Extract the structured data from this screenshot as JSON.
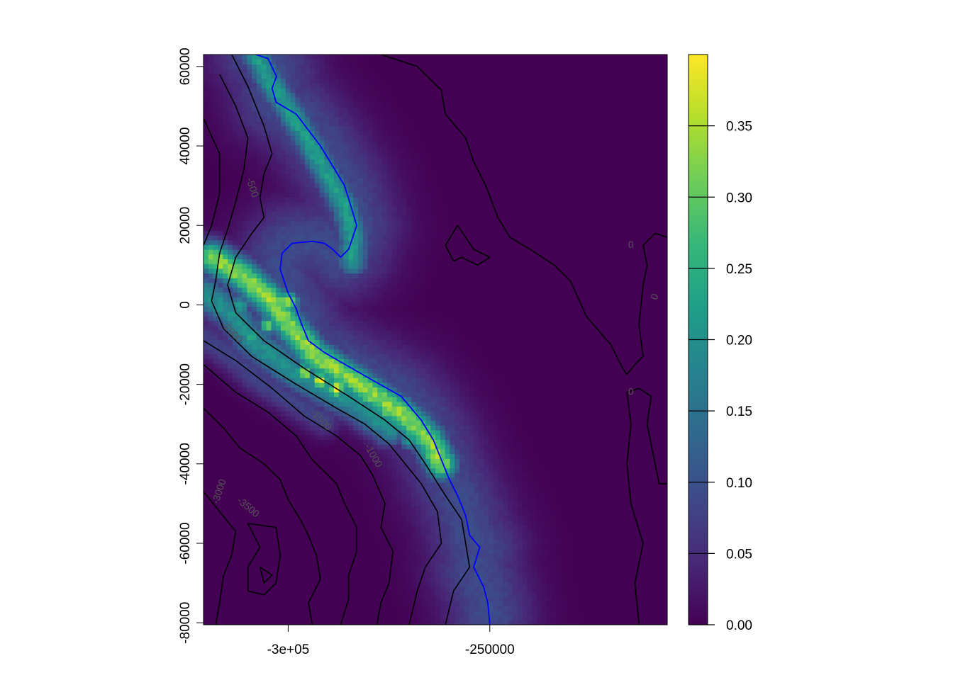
{
  "chart_data": {
    "type": "heatmap",
    "title": "",
    "xlabel": "",
    "ylabel": "",
    "xlim": [
      -321000,
      -206000
    ],
    "ylim": [
      -80500,
      63000
    ],
    "x_ticks": [
      {
        "value": -300000,
        "label": "-3e+05"
      },
      {
        "value": -250000,
        "label": "-250000"
      }
    ],
    "y_ticks": [
      {
        "value": 60000,
        "label": "60000"
      },
      {
        "value": 40000,
        "label": "40000"
      },
      {
        "value": 20000,
        "label": "20000"
      },
      {
        "value": 0,
        "label": "0"
      },
      {
        "value": -20000,
        "label": "-20000"
      },
      {
        "value": -40000,
        "label": "-40000"
      },
      {
        "value": -60000,
        "label": "-60000"
      },
      {
        "value": -80000,
        "label": "-80000"
      }
    ],
    "colorbar": {
      "range": [
        0,
        0.4
      ],
      "palette": [
        "#440154",
        "#482878",
        "#3E4A89",
        "#31688E",
        "#26828E",
        "#1F9E89",
        "#35B779",
        "#6DCD59",
        "#B4DE2C",
        "#FDE725"
      ],
      "ticks": [
        {
          "value": 0.0,
          "label": "0.00"
        },
        {
          "value": 0.05,
          "label": "0.05"
        },
        {
          "value": 0.1,
          "label": "0.10"
        },
        {
          "value": 0.15,
          "label": "0.15"
        },
        {
          "value": 0.2,
          "label": "0.20"
        },
        {
          "value": 0.25,
          "label": "0.25"
        },
        {
          "value": 0.3,
          "label": "0.30"
        },
        {
          "value": 0.35,
          "label": "0.35"
        }
      ]
    },
    "highlight_line": {
      "color": "#0000FF",
      "points": [
        [
          -308000,
          63000
        ],
        [
          -305000,
          62000
        ],
        [
          -302900,
          57500
        ],
        [
          -304000,
          54500
        ],
        [
          -303000,
          51000
        ],
        [
          -298000,
          48000
        ],
        [
          -292000,
          40000
        ],
        [
          -286000,
          30000
        ],
        [
          -283000,
          20000
        ],
        [
          -285000,
          14000
        ],
        [
          -287000,
          12000
        ],
        [
          -289000,
          14000
        ],
        [
          -291000,
          15500
        ],
        [
          -294000,
          16000
        ],
        [
          -299000,
          15500
        ],
        [
          -301500,
          13000
        ],
        [
          -302000,
          9000
        ],
        [
          -300000,
          3000
        ],
        [
          -298000,
          -1000
        ],
        [
          -297000,
          -4000
        ],
        [
          -295000,
          -9000
        ],
        [
          -291000,
          -12000
        ],
        [
          -285000,
          -15500
        ],
        [
          -279000,
          -19000
        ],
        [
          -272000,
          -23000
        ],
        [
          -267000,
          -29000
        ],
        [
          -264000,
          -34000
        ],
        [
          -262000,
          -39000
        ],
        [
          -260000,
          -44000
        ],
        [
          -258000,
          -48000
        ],
        [
          -256000,
          -53000
        ],
        [
          -255000,
          -58000
        ],
        [
          -252500,
          -61000
        ],
        [
          -254000,
          -66000
        ],
        [
          -251500,
          -71000
        ],
        [
          -250500,
          -75000
        ],
        [
          -250000,
          -80500
        ]
      ]
    },
    "ridges": [
      {
        "points": [
          [
            -308000,
            63000
          ],
          [
            -305000,
            57000
          ],
          [
            -301000,
            51000
          ],
          [
            -296000,
            43000
          ],
          [
            -291000,
            34000
          ],
          [
            -286000,
            25000
          ],
          [
            -284000,
            18000
          ],
          [
            -284000,
            11000
          ]
        ],
        "width": 2300,
        "peak": 0.22
      },
      {
        "points": [
          [
            -319000,
            12000
          ],
          [
            -312000,
            8000
          ],
          [
            -304000,
            1000
          ],
          [
            -299000,
            -6000
          ],
          [
            -293000,
            -13000
          ],
          [
            -285000,
            -18000
          ],
          [
            -278000,
            -23000
          ],
          [
            -271000,
            -28000
          ],
          [
            -265000,
            -34000
          ],
          [
            -262000,
            -40000
          ]
        ],
        "width": 2600,
        "peak": 0.33
      },
      {
        "points": [
          [
            -321000,
            3000
          ],
          [
            -314000,
            -2000
          ],
          [
            -309000,
            -9000
          ],
          [
            -300000,
            -16000
          ],
          [
            -291000,
            -21000
          ],
          [
            -283000,
            -25000
          ],
          [
            -275000,
            -31000
          ]
        ],
        "width": 2800,
        "peak": 0.2
      },
      {
        "points": [
          [
            -321000,
            -8000
          ],
          [
            -314000,
            -13000
          ],
          [
            -307000,
            -19000
          ],
          [
            -299000,
            -24000
          ],
          [
            -291000,
            -29000
          ]
        ],
        "width": 2600,
        "peak": 0.08
      }
    ],
    "hotspots": [
      [
        -300000,
        1000,
        0.38
      ],
      [
        -296000,
        -17000,
        0.36
      ],
      [
        -292000,
        -19000,
        0.39
      ],
      [
        -288000,
        -21000,
        0.39
      ],
      [
        -280000,
        -23000,
        0.31
      ],
      [
        -276000,
        -27000,
        0.28
      ],
      [
        -312000,
        8500,
        0.25
      ],
      [
        -305000,
        -5000,
        0.3
      ],
      [
        -309000,
        -8000,
        0.26
      ],
      [
        -312000,
        0,
        0.24
      ],
      [
        -270000,
        -34000,
        0.22
      ]
    ],
    "contours": [
      {
        "level": "0",
        "points": [
          [
            -277000,
            63000
          ],
          [
            -268000,
            60000
          ],
          [
            -262000,
            54000
          ],
          [
            -261000,
            48000
          ],
          [
            -256000,
            42000
          ],
          [
            -254000,
            36000
          ],
          [
            -251000,
            30000
          ],
          [
            -248000,
            22000
          ],
          [
            -245000,
            17000
          ],
          [
            -240000,
            14000
          ],
          [
            -234000,
            10000
          ],
          [
            -230000,
            6000
          ],
          [
            -226000,
            -3000
          ],
          [
            -220000,
            -10000
          ],
          [
            -217000,
            -16000
          ],
          [
            -216000,
            -17500
          ],
          [
            -214000,
            -15000
          ],
          [
            -212000,
            -13000
          ],
          [
            -213000,
            -5000
          ],
          [
            -212000,
            5000
          ],
          [
            -211000,
            10000
          ],
          [
            -212000,
            15000
          ],
          [
            -209000,
            18000
          ],
          [
            -206000,
            17000
          ]
        ]
      },
      {
        "level": "0",
        "points": [
          [
            -259000,
            11000
          ],
          [
            -261000,
            15000
          ],
          [
            -258000,
            20000
          ],
          [
            -254000,
            14000
          ],
          [
            -250000,
            12000
          ],
          [
            -253000,
            10000
          ],
          [
            -257000,
            12000
          ],
          [
            -259000,
            11000
          ]
        ]
      },
      {
        "level": "0",
        "points": [
          [
            -213000,
            -80500
          ],
          [
            -214000,
            -70000
          ],
          [
            -212000,
            -60000
          ],
          [
            -215000,
            -50000
          ],
          [
            -216000,
            -40000
          ],
          [
            -215000,
            -30000
          ],
          [
            -216000,
            -22000
          ],
          [
            -213000,
            -21000
          ],
          [
            -210000,
            -23000
          ],
          [
            -211000,
            -30000
          ],
          [
            -209000,
            -40000
          ],
          [
            -208000,
            -45000
          ],
          [
            -206000,
            -45000
          ]
        ]
      },
      {
        "level": "-500",
        "points": [
          [
            -314000,
            63000
          ],
          [
            -310000,
            55000
          ],
          [
            -306000,
            45000
          ],
          [
            -304000,
            38000
          ],
          [
            -306000,
            33000
          ],
          [
            -307000,
            27000
          ],
          [
            -306000,
            22000
          ],
          [
            -309000,
            18000
          ],
          [
            -313000,
            12000
          ],
          [
            -315000,
            5000
          ],
          [
            -313000,
            -2000
          ],
          [
            -306000,
            -9000
          ],
          [
            -296000,
            -16000
          ],
          [
            -285000,
            -23000
          ],
          [
            -276000,
            -29000
          ],
          [
            -270000,
            -34000
          ],
          [
            -266000,
            -40000
          ],
          [
            -261000,
            -48000
          ],
          [
            -257000,
            -54000
          ],
          [
            -256000,
            -60000
          ],
          [
            -255000,
            -66000
          ],
          [
            -259000,
            -72000
          ],
          [
            -261000,
            -80500
          ]
        ]
      },
      {
        "level": "-1000",
        "points": [
          [
            -317000,
            58000
          ],
          [
            -313000,
            50000
          ],
          [
            -310000,
            42000
          ],
          [
            -311000,
            34000
          ],
          [
            -313000,
            26000
          ],
          [
            -315000,
            19000
          ],
          [
            -317000,
            13000
          ],
          [
            -318000,
            6000
          ],
          [
            -319000,
            1000
          ],
          [
            -316000,
            -6000
          ],
          [
            -309000,
            -13000
          ],
          [
            -298000,
            -20000
          ],
          [
            -288000,
            -26000
          ],
          [
            -281000,
            -30000
          ],
          [
            -275000,
            -35000
          ],
          [
            -271000,
            -40000
          ],
          [
            -267000,
            -45000
          ],
          [
            -263000,
            -52000
          ],
          [
            -262000,
            -60000
          ],
          [
            -266000,
            -66000
          ],
          [
            -268000,
            -72000
          ],
          [
            -270000,
            -80500
          ]
        ]
      },
      {
        "level": "-1500",
        "points": [
          [
            -321000,
            47000
          ],
          [
            -317000,
            38000
          ],
          [
            -317000,
            28000
          ],
          [
            -319000,
            20000
          ],
          [
            -321000,
            15000
          ]
        ]
      },
      {
        "level": "-1500",
        "points": [
          [
            -321000,
            -9000
          ],
          [
            -313000,
            -14000
          ],
          [
            -304000,
            -21000
          ],
          [
            -296000,
            -28000
          ],
          [
            -288000,
            -33000
          ],
          [
            -282000,
            -38000
          ],
          [
            -279000,
            -43000
          ],
          [
            -276000,
            -50000
          ],
          [
            -277000,
            -56000
          ],
          [
            -274000,
            -62000
          ],
          [
            -275000,
            -70000
          ],
          [
            -277000,
            -75000
          ],
          [
            -278000,
            -80500
          ]
        ]
      },
      {
        "level": "-2000",
        "points": [
          [
            -321000,
            -15000
          ],
          [
            -313000,
            -22000
          ],
          [
            -305000,
            -27000
          ],
          [
            -298000,
            -33000
          ],
          [
            -294000,
            -39000
          ],
          [
            -288000,
            -45000
          ],
          [
            -286000,
            -50000
          ],
          [
            -283000,
            -56000
          ],
          [
            -283000,
            -62000
          ],
          [
            -285000,
            -68000
          ],
          [
            -285000,
            -74000
          ],
          [
            -287000,
            -80500
          ]
        ]
      },
      {
        "level": "-3000",
        "points": [
          [
            -321000,
            -26000
          ],
          [
            -316000,
            -31000
          ],
          [
            -312000,
            -36000
          ],
          [
            -306000,
            -40000
          ],
          [
            -302000,
            -44000
          ],
          [
            -300000,
            -49000
          ],
          [
            -297000,
            -54000
          ],
          [
            -295000,
            -58000
          ],
          [
            -293000,
            -63000
          ],
          [
            -292000,
            -69000
          ],
          [
            -295000,
            -75000
          ],
          [
            -294000,
            -80500
          ]
        ]
      },
      {
        "level": "-3000",
        "points": [
          [
            -321000,
            -47000
          ],
          [
            -317000,
            -52000
          ],
          [
            -313000,
            -57000
          ],
          [
            -314000,
            -63000
          ],
          [
            -316000,
            -68000
          ],
          [
            -317000,
            -75000
          ],
          [
            -318000,
            -80500
          ]
        ]
      },
      {
        "level": "-3500",
        "points": [
          [
            -310000,
            -55000
          ],
          [
            -303000,
            -56000
          ],
          [
            -302000,
            -63000
          ],
          [
            -303000,
            -70000
          ],
          [
            -306000,
            -73000
          ],
          [
            -310000,
            -72000
          ],
          [
            -310000,
            -66000
          ],
          [
            -307000,
            -61000
          ],
          [
            -310000,
            -55000
          ]
        ]
      },
      {
        "level": "-4000",
        "points": [
          [
            -307000,
            -66000
          ],
          [
            -304000,
            -68000
          ],
          [
            -306000,
            -70000
          ],
          [
            -307000,
            -66000
          ]
        ]
      }
    ],
    "contour_labels": [
      {
        "text": "-500",
        "x": -309000,
        "y": 29500,
        "angle": 72
      },
      {
        "text": "-2000",
        "x": -314000,
        "y": -7000,
        "angle": 45
      },
      {
        "text": "-1500",
        "x": -292000,
        "y": -29000,
        "angle": 45
      },
      {
        "text": "-1000",
        "x": -279000,
        "y": -38000,
        "angle": 60
      },
      {
        "text": "-3000",
        "x": -317000,
        "y": -47000,
        "angle": -72
      },
      {
        "text": "0",
        "x": -215000,
        "y": 15000,
        "angle": 0
      },
      {
        "text": "0",
        "x": -209000,
        "y": 2000,
        "angle": -70
      },
      {
        "text": "0",
        "x": -215000,
        "y": -22000,
        "angle": 0
      },
      {
        "text": "-3500",
        "x": -310000,
        "y": -51000,
        "angle": 40
      }
    ]
  }
}
